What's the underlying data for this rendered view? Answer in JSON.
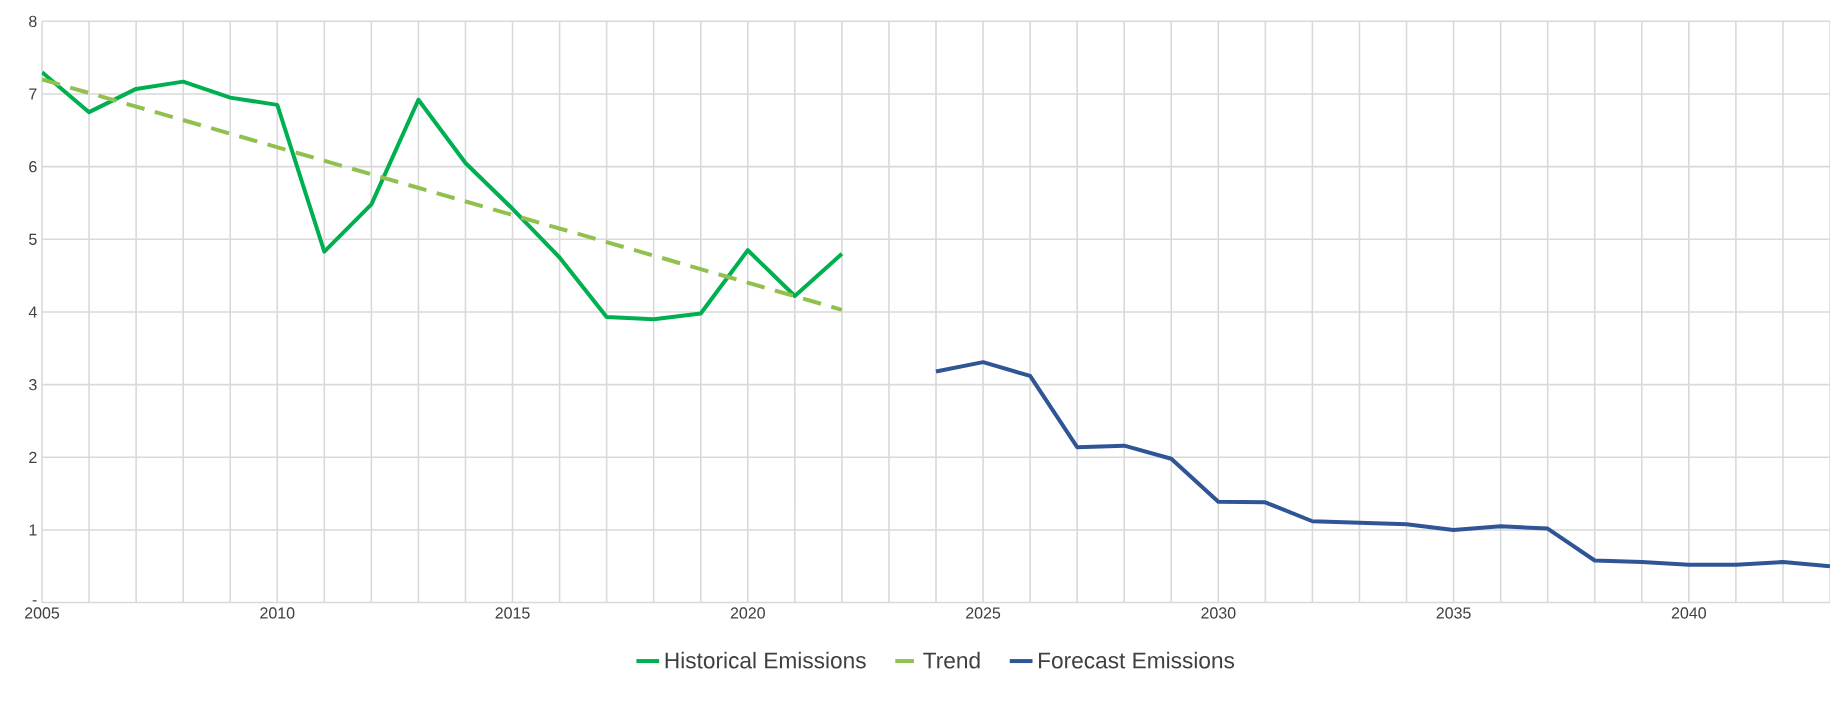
{
  "chart_data": {
    "type": "line",
    "xlim": [
      2005,
      2043
    ],
    "ylim": [
      0,
      8
    ],
    "xticks": [
      2005,
      {
        "value": 2006,
        "label": null
      },
      {
        "value": 2007,
        "label": null
      },
      {
        "value": 2008,
        "label": null
      },
      {
        "value": 2009,
        "label": null
      },
      2010,
      {
        "value": 2011,
        "label": null
      },
      {
        "value": 2012,
        "label": null
      },
      {
        "value": 2013,
        "label": null
      },
      {
        "value": 2014,
        "label": null
      },
      2015,
      {
        "value": 2016,
        "label": null
      },
      {
        "value": 2017,
        "label": null
      },
      {
        "value": 2018,
        "label": null
      },
      {
        "value": 2019,
        "label": null
      },
      2020,
      {
        "value": 2021,
        "label": null
      },
      {
        "value": 2022,
        "label": null
      },
      {
        "value": 2023,
        "label": null
      },
      {
        "value": 2024,
        "label": null
      },
      2025,
      {
        "value": 2026,
        "label": null
      },
      {
        "value": 2027,
        "label": null
      },
      {
        "value": 2028,
        "label": null
      },
      {
        "value": 2029,
        "label": null
      },
      2030,
      {
        "value": 2031,
        "label": null
      },
      {
        "value": 2032,
        "label": null
      },
      {
        "value": 2033,
        "label": null
      },
      {
        "value": 2034,
        "label": null
      },
      2035,
      {
        "value": 2036,
        "label": null
      },
      {
        "value": 2037,
        "label": null
      },
      {
        "value": 2038,
        "label": null
      },
      {
        "value": 2039,
        "label": null
      },
      2040,
      {
        "value": 2041,
        "label": null
      },
      {
        "value": 2042,
        "label": null
      },
      {
        "value": 2043,
        "label": null
      }
    ],
    "yticks": [
      {
        "value": 0,
        "label": "-"
      },
      1,
      2,
      3,
      4,
      5,
      6,
      7,
      8
    ],
    "grid": true,
    "legend": "bottom",
    "series": [
      {
        "name": "Historical Emissions",
        "color": "#00b050",
        "x": [
          2005,
          2006,
          2007,
          2008,
          2009,
          2010,
          2011,
          2012,
          2013,
          2014,
          2015,
          2016,
          2017,
          2018,
          2019,
          2020,
          2021,
          2022
        ],
        "values": [
          7.3,
          6.75,
          7.07,
          7.17,
          6.95,
          6.85,
          4.83,
          5.48,
          6.92,
          6.05,
          5.42,
          4.75,
          3.93,
          3.9,
          3.98,
          4.85,
          4.22,
          4.8
        ]
      },
      {
        "name": "Trend",
        "color": "#92c050",
        "line_style": "dashed",
        "x": [
          2005,
          2022
        ],
        "values": [
          7.2,
          4.03
        ]
      },
      {
        "name": "Forecast Emissions",
        "color": "#2f5597",
        "x": [
          2024,
          2025,
          2026,
          2027,
          2028,
          2029,
          2030,
          2031,
          2032,
          2033,
          2034,
          2035,
          2036,
          2037,
          2038,
          2039,
          2040,
          2041,
          2042,
          2043
        ],
        "values": [
          3.18,
          3.31,
          3.12,
          2.14,
          2.16,
          1.98,
          1.39,
          1.38,
          1.12,
          1.1,
          1.08,
          1.0,
          1.05,
          1.02,
          0.58,
          0.56,
          0.52,
          0.52,
          0.56,
          0.5
        ]
      }
    ]
  }
}
